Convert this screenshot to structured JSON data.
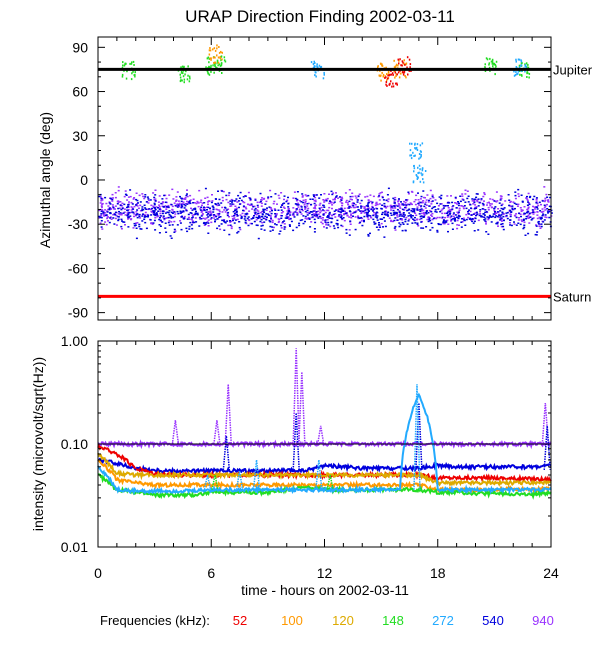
{
  "title": "URAP Direction Finding  2002-03-11",
  "chart_data": [
    {
      "type": "scatter",
      "ylabel": "Azimuthal angle (deg)",
      "xlim": [
        0,
        24
      ],
      "ylim": [
        -95,
        97
      ],
      "yticks": [
        90,
        60,
        30,
        0,
        -30,
        -60,
        -90
      ],
      "reference_lines": [
        {
          "label": "Jupiter",
          "y": 75,
          "color": "#000000"
        },
        {
          "label": "Saturn",
          "y": -79,
          "color": "#ff0000"
        }
      ],
      "series": [
        {
          "freq": "940",
          "color": "#9933ff",
          "band": {
            "x_range": [
              0,
              24
            ],
            "center": -19,
            "spread": 7
          }
        },
        {
          "freq": "540",
          "color": "#0000dd",
          "band": {
            "x_range": [
              0,
              24
            ],
            "center": -22,
            "spread": 8
          }
        },
        {
          "freq": "148",
          "color": "#22dd22",
          "clusters": [
            {
              "x": 1.6,
              "y": 75
            },
            {
              "x": 4.5,
              "y": 73
            },
            {
              "x": 6.0,
              "y": 78
            },
            {
              "x": 6.4,
              "y": 79
            },
            {
              "x": 20.8,
              "y": 78
            },
            {
              "x": 22.5,
              "y": 76
            }
          ]
        },
        {
          "freq": "100",
          "color": "#ff9900",
          "clusters": [
            {
              "x": 15.1,
              "y": 74
            },
            {
              "x": 16.0,
              "y": 76
            },
            {
              "x": 6.2,
              "y": 86
            }
          ]
        },
        {
          "freq": "52",
          "color": "#ee0000",
          "clusters": [
            {
              "x": 15.5,
              "y": 70
            },
            {
              "x": 16.2,
              "y": 78
            }
          ]
        },
        {
          "freq": "272",
          "color": "#22aaff",
          "clusters": [
            {
              "x": 16.8,
              "y": 20
            },
            {
              "x": 17.0,
              "y": 5
            },
            {
              "x": 11.6,
              "y": 75
            },
            {
              "x": 22.3,
              "y": 77
            }
          ]
        }
      ]
    },
    {
      "type": "line",
      "xlabel": "time - hours on 2002-03-11",
      "ylabel": "intensity (microvolt/sqrt(Hz))",
      "xlim": [
        0,
        24
      ],
      "xticks": [
        0,
        6,
        12,
        18,
        24
      ],
      "yscale": "log",
      "ylim": [
        0.01,
        1.0
      ],
      "yticks": [
        "1.00",
        "0.10",
        "0.01"
      ],
      "reference_line_y": 0.1,
      "series": [
        {
          "name": "940",
          "color": "#9933ff",
          "x": [
            0,
            1,
            2,
            3,
            4,
            5,
            6,
            7,
            8,
            9,
            10,
            11,
            12,
            13,
            14,
            15,
            16,
            17,
            18,
            19,
            20,
            21,
            22,
            23,
            24
          ],
          "y": [
            0.1,
            0.1,
            0.1,
            0.1,
            0.1,
            0.1,
            0.1,
            0.1,
            0.1,
            0.1,
            0.1,
            0.1,
            0.1,
            0.1,
            0.1,
            0.1,
            0.1,
            0.1,
            0.1,
            0.1,
            0.1,
            0.1,
            0.1,
            0.1,
            0.1
          ]
        },
        {
          "name": "540",
          "color": "#0000dd",
          "x": [
            0,
            1,
            2,
            3,
            4,
            5,
            6,
            7,
            8,
            9,
            10,
            11,
            12,
            13,
            14,
            15,
            16,
            17,
            18,
            19,
            20,
            21,
            22,
            23,
            24
          ],
          "y": [
            0.07,
            0.065,
            0.058,
            0.056,
            0.055,
            0.055,
            0.055,
            0.055,
            0.055,
            0.055,
            0.055,
            0.055,
            0.062,
            0.06,
            0.058,
            0.058,
            0.058,
            0.058,
            0.062,
            0.06,
            0.06,
            0.06,
            0.06,
            0.06,
            0.062
          ]
        },
        {
          "name": "52",
          "color": "#ee0000",
          "x": [
            0,
            1,
            2,
            3,
            4,
            5,
            6,
            7,
            8,
            9,
            10,
            11,
            12,
            13,
            14,
            15,
            16,
            17,
            18,
            19,
            20,
            21,
            22,
            23,
            24
          ],
          "y": [
            0.095,
            0.08,
            0.058,
            0.052,
            0.05,
            0.05,
            0.05,
            0.05,
            0.05,
            0.05,
            0.05,
            0.05,
            0.05,
            0.05,
            0.05,
            0.05,
            0.05,
            0.05,
            0.047,
            0.047,
            0.047,
            0.047,
            0.046,
            0.046,
            0.045
          ]
        },
        {
          "name": "100",
          "color": "#ff9900",
          "x": [
            0,
            1,
            2,
            3,
            4,
            5,
            6,
            7,
            8,
            9,
            10,
            11,
            12,
            13,
            14,
            15,
            16,
            17,
            18,
            19,
            20,
            21,
            22,
            23,
            24
          ],
          "y": [
            0.07,
            0.045,
            0.042,
            0.04,
            0.04,
            0.04,
            0.04,
            0.04,
            0.04,
            0.04,
            0.04,
            0.04,
            0.04,
            0.04,
            0.04,
            0.04,
            0.04,
            0.04,
            0.036,
            0.036,
            0.036,
            0.036,
            0.037,
            0.036,
            0.037
          ]
        },
        {
          "name": "120",
          "color": "#ddaa00",
          "x": [
            0,
            1,
            2,
            3,
            4,
            5,
            6,
            7,
            8,
            9,
            10,
            11,
            12,
            13,
            14,
            15,
            16,
            17,
            18,
            19,
            20,
            21,
            22,
            23,
            24
          ],
          "y": [
            0.08,
            0.052,
            0.05,
            0.05,
            0.05,
            0.05,
            0.05,
            0.05,
            0.05,
            0.05,
            0.05,
            0.05,
            0.05,
            0.05,
            0.05,
            0.05,
            0.05,
            0.05,
            0.042,
            0.042,
            0.042,
            0.042,
            0.042,
            0.042,
            0.042
          ]
        },
        {
          "name": "148",
          "color": "#22dd22",
          "x": [
            0,
            1,
            2,
            3,
            4,
            5,
            6,
            7,
            8,
            9,
            10,
            11,
            12,
            13,
            14,
            15,
            16,
            17,
            18,
            19,
            20,
            21,
            22,
            23,
            24
          ],
          "y": [
            0.05,
            0.036,
            0.034,
            0.032,
            0.032,
            0.032,
            0.034,
            0.034,
            0.034,
            0.034,
            0.036,
            0.038,
            0.036,
            0.036,
            0.036,
            0.036,
            0.036,
            0.036,
            0.034,
            0.034,
            0.033,
            0.033,
            0.033,
            0.032,
            0.034
          ]
        },
        {
          "name": "272",
          "color": "#22aaff",
          "x": [
            0,
            1,
            2,
            3,
            4,
            5,
            6,
            7,
            8,
            9,
            10,
            11,
            12,
            13,
            14,
            15,
            16,
            17,
            18,
            19,
            20,
            21,
            22,
            23,
            24
          ],
          "y": [
            0.06,
            0.036,
            0.035,
            0.035,
            0.035,
            0.035,
            0.036,
            0.036,
            0.036,
            0.036,
            0.036,
            0.036,
            0.036,
            0.036,
            0.036,
            0.036,
            0.036,
            0.3,
            0.036,
            0.036,
            0.036,
            0.036,
            0.036,
            0.036,
            0.036
          ]
        }
      ],
      "spikes": [
        {
          "x": 4.1,
          "y": 0.17,
          "color": "#9933ff"
        },
        {
          "x": 6.3,
          "y": 0.17,
          "color": "#9933ff"
        },
        {
          "x": 6.9,
          "y": 0.38,
          "color": "#9933ff"
        },
        {
          "x": 10.5,
          "y": 0.85,
          "color": "#9933ff"
        },
        {
          "x": 10.8,
          "y": 0.5,
          "color": "#9933ff"
        },
        {
          "x": 11.8,
          "y": 0.15,
          "color": "#9933ff"
        },
        {
          "x": 23.7,
          "y": 0.25,
          "color": "#9933ff"
        },
        {
          "x": 2.1,
          "y": 0.06,
          "color": "#0000dd"
        },
        {
          "x": 6.8,
          "y": 0.12,
          "color": "#0000dd"
        },
        {
          "x": 10.5,
          "y": 0.2,
          "color": "#0000dd"
        },
        {
          "x": 17.0,
          "y": 0.25,
          "color": "#0000dd"
        },
        {
          "x": 23.8,
          "y": 0.15,
          "color": "#0000dd"
        },
        {
          "x": 5.8,
          "y": 0.05,
          "color": "#22aaff"
        },
        {
          "x": 7.5,
          "y": 0.055,
          "color": "#22aaff"
        },
        {
          "x": 8.4,
          "y": 0.07,
          "color": "#22aaff"
        },
        {
          "x": 11.7,
          "y": 0.07,
          "color": "#22aaff"
        },
        {
          "x": 16.9,
          "y": 0.38,
          "color": "#22aaff"
        },
        {
          "x": 6.2,
          "y": 0.05,
          "color": "#22dd22"
        },
        {
          "x": 12.3,
          "y": 0.05,
          "color": "#22dd22"
        }
      ]
    }
  ],
  "legend": {
    "label": "Frequencies (kHz):",
    "items": [
      {
        "text": "52",
        "color": "#ee0000"
      },
      {
        "text": "100",
        "color": "#ff9900"
      },
      {
        "text": "120",
        "color": "#ddaa00"
      },
      {
        "text": "148",
        "color": "#22dd22"
      },
      {
        "text": "272",
        "color": "#22aaff"
      },
      {
        "text": "540",
        "color": "#0000dd"
      },
      {
        "text": "940",
        "color": "#9933ff"
      }
    ]
  }
}
